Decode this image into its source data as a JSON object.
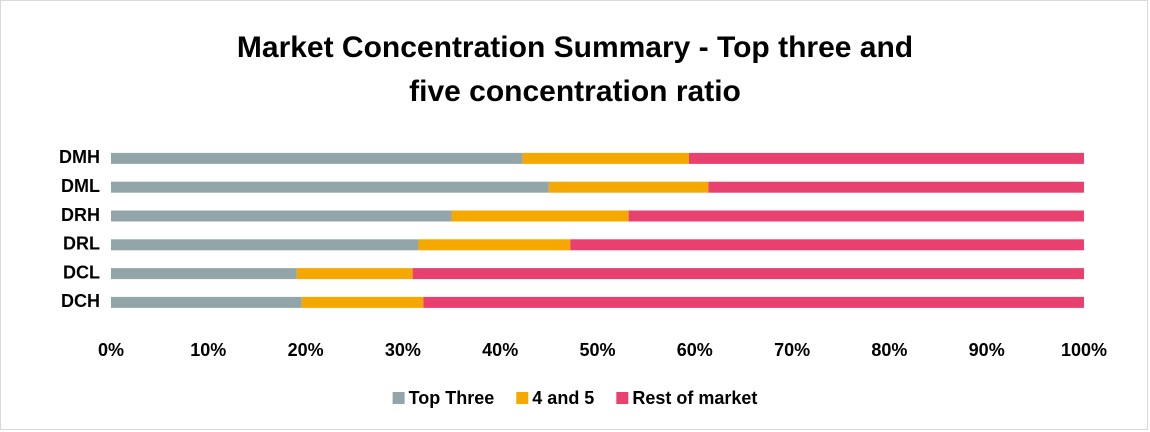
{
  "chart_data": {
    "type": "stacked_bar_horizontal",
    "title": "Market Concentration Summary - Top three and five concentration ratio",
    "categories": [
      "DMH",
      "DML",
      "DRH",
      "DRL",
      "DCL",
      "DCH"
    ],
    "series": [
      {
        "name": "Top Three",
        "color": "#92a5a8",
        "values": [
          42.3,
          45.0,
          35.0,
          31.6,
          19.1,
          19.6
        ]
      },
      {
        "name": "4 and 5",
        "color": "#f5a800",
        "values": [
          17.1,
          16.4,
          18.2,
          15.6,
          11.9,
          12.5
        ]
      },
      {
        "name": "Rest of market",
        "color": "#e8416f",
        "values": [
          40.6,
          38.6,
          46.8,
          52.8,
          69.0,
          67.9
        ]
      }
    ],
    "xlim": [
      0,
      100
    ],
    "xticks": [
      {
        "value": 0,
        "label": "0%"
      },
      {
        "value": 10,
        "label": "10%"
      },
      {
        "value": 20,
        "label": "20%"
      },
      {
        "value": 30,
        "label": "30%"
      },
      {
        "value": 40,
        "label": "40%"
      },
      {
        "value": 50,
        "label": "50%"
      },
      {
        "value": 60,
        "label": "60%"
      },
      {
        "value": 70,
        "label": "70%"
      },
      {
        "value": 80,
        "label": "80%"
      },
      {
        "value": 90,
        "label": "90%"
      },
      {
        "value": 100,
        "label": "100%"
      }
    ],
    "legend": "bottom"
  }
}
